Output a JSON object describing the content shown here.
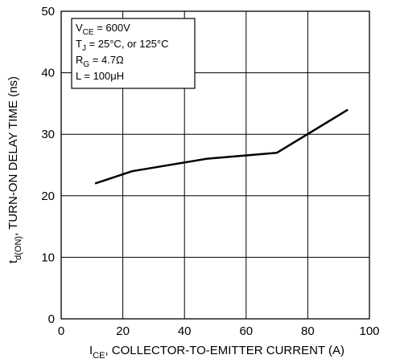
{
  "chart_data": {
    "type": "line",
    "xlabel_main": "I",
    "xlabel_sub": "CE",
    "xlabel_rest": ", COLLECTOR-TO-EMITTER CURRENT (A)",
    "ylabel_main": "t",
    "ylabel_sub": "d(ON)",
    "ylabel_rest": ", TURN-ON DELAY TIME (ns)",
    "xlim": [
      0,
      100
    ],
    "ylim": [
      0,
      50
    ],
    "xticks": [
      "0",
      "20",
      "40",
      "60",
      "80",
      "100"
    ],
    "yticks": [
      "0",
      "10",
      "20",
      "30",
      "40",
      "50"
    ],
    "grid": true,
    "series": [
      {
        "x": [
          11,
          23,
          47,
          70,
          93
        ],
        "y": [
          22,
          24,
          26,
          27,
          34
        ]
      }
    ],
    "conditions_box": {
      "position": "top-left",
      "lines": [
        {
          "main": "V",
          "sub": "CE",
          "rest": " = 600V"
        },
        {
          "main": "T",
          "sub": "J",
          "rest": " = 25°C, or 125°C"
        },
        {
          "main": "R",
          "sub": "G",
          "rest": " = 4.7Ω"
        },
        {
          "main": "L = 100μH",
          "sub": "",
          "rest": ""
        }
      ]
    }
  }
}
